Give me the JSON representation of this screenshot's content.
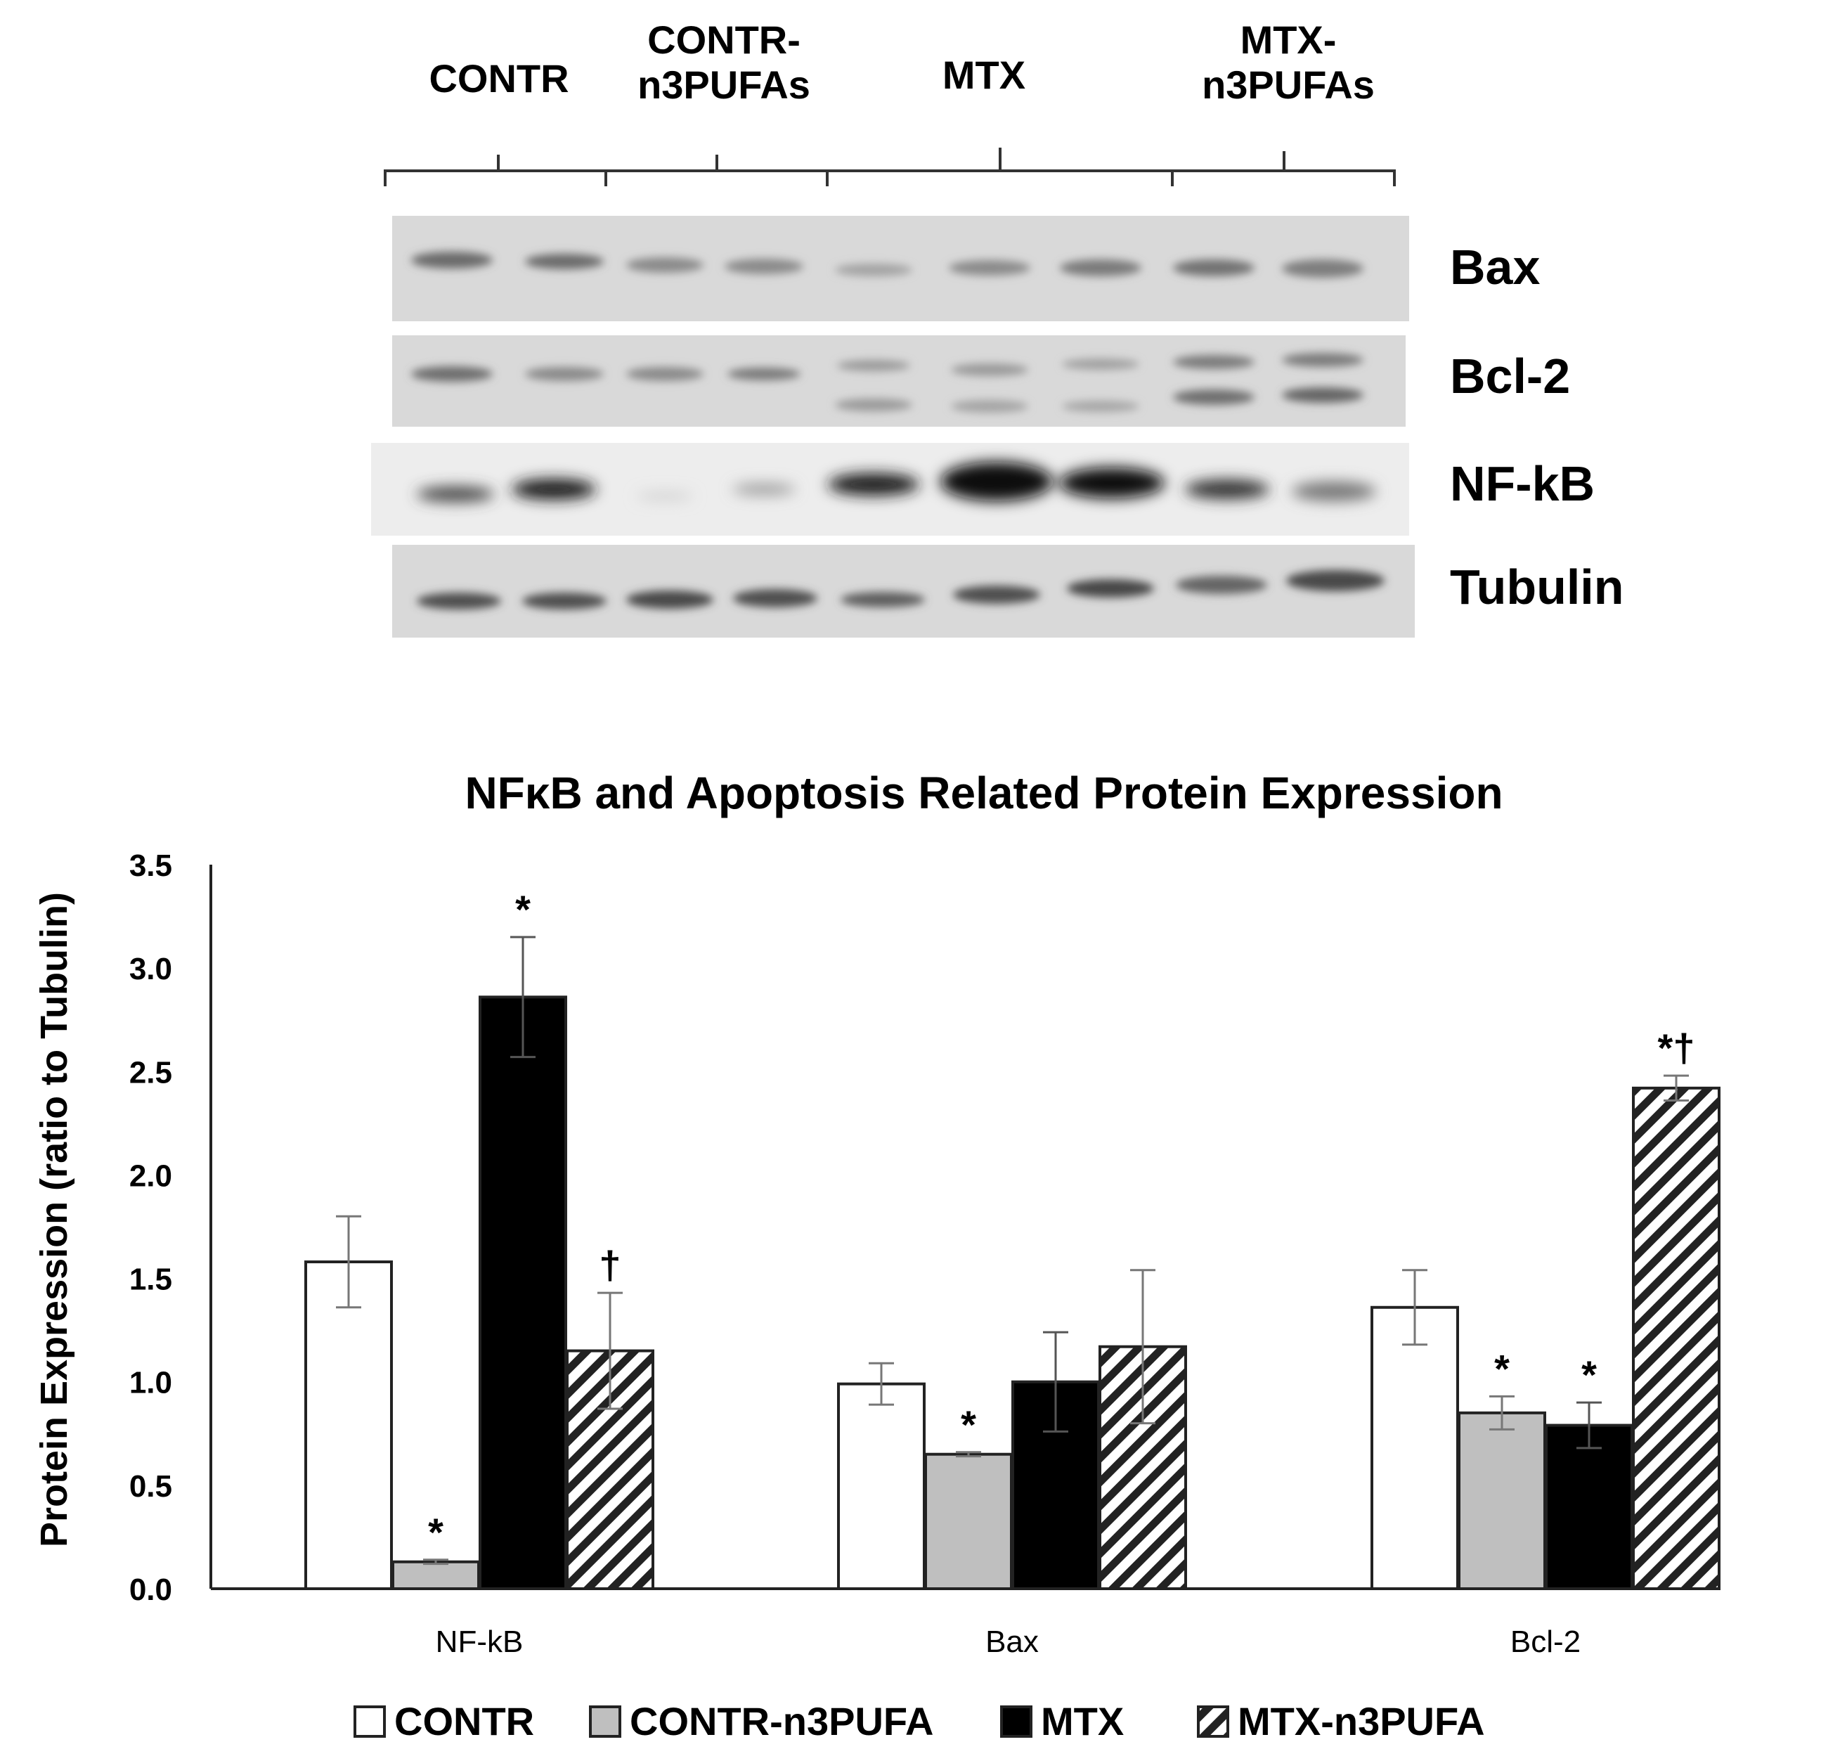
{
  "blot": {
    "groups": [
      {
        "label": "CONTR"
      },
      {
        "label": "CONTR-\nn3PUFAs"
      },
      {
        "label": "MTX"
      },
      {
        "label": "MTX-\nn3PUFAs"
      }
    ],
    "proteins": [
      "Bax",
      "Bcl-2",
      "NF-kB",
      "Tubulin"
    ]
  },
  "chart_data": {
    "type": "bar",
    "title": "NFκB and Apoptosis Related Protein Expression",
    "ylabel": "Protein Expression (ratio to Tubulin)",
    "xlabel": "",
    "ylim": [
      0,
      3.5
    ],
    "yticks": [
      "0.0",
      "0.5",
      "1.0",
      "1.5",
      "2.0",
      "2.5",
      "3.0",
      "3.5"
    ],
    "categories": [
      "NF-kB",
      "Bax",
      "Bcl-2"
    ],
    "series": [
      {
        "name": "CONTR",
        "fill": "white",
        "values": [
          1.58,
          0.99,
          1.36
        ],
        "errors": [
          0.22,
          0.1,
          0.18
        ],
        "markers": [
          "",
          "",
          ""
        ]
      },
      {
        "name": "CONTR-n3PUFA",
        "fill": "gray",
        "values": [
          0.13,
          0.65,
          0.85
        ],
        "errors": [
          0.01,
          0.01,
          0.08
        ],
        "markers": [
          "*",
          "*",
          "*"
        ]
      },
      {
        "name": "MTX",
        "fill": "black",
        "values": [
          2.86,
          1.0,
          0.79
        ],
        "errors": [
          0.29,
          0.24,
          0.11
        ],
        "markers": [
          "*",
          "",
          "*"
        ]
      },
      {
        "name": "MTX-n3PUFA",
        "fill": "hatch",
        "values": [
          1.15,
          1.17,
          2.42
        ],
        "errors": [
          0.28,
          0.37,
          0.06
        ],
        "markers": [
          "†",
          "",
          "*†"
        ]
      }
    ],
    "grid": false,
    "legend_position": "bottom"
  }
}
